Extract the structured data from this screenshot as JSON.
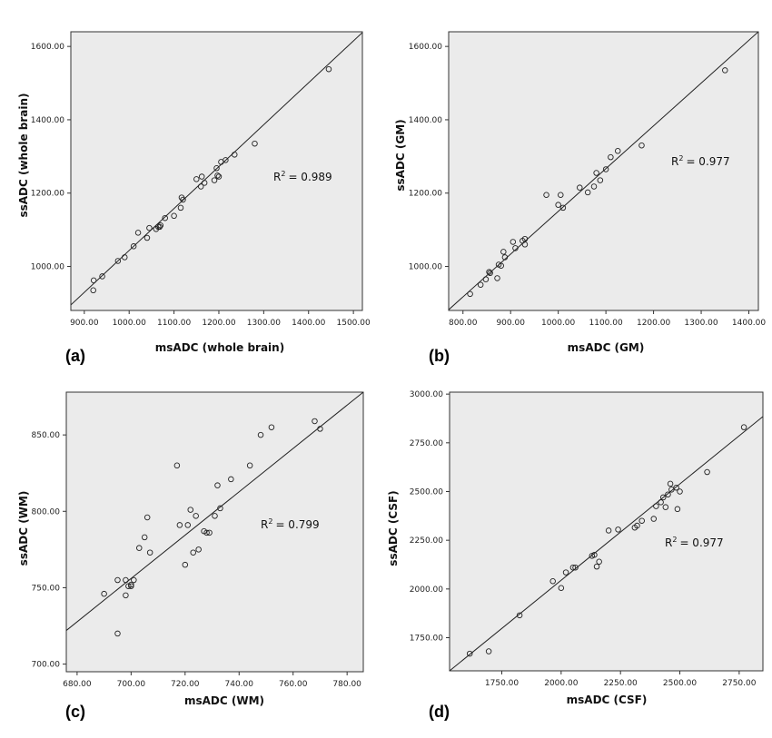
{
  "chart_data": [
    {
      "type": "scatter",
      "panel_label": "(a)",
      "xlabel": "msADC (whole brain)",
      "ylabel": "ssADC (whole brain)",
      "xlim": [
        870,
        1520
      ],
      "ylim": [
        880,
        1640
      ],
      "xticks": [
        900,
        1000,
        1100,
        1200,
        1300,
        1400,
        1500
      ],
      "yticks": [
        1000,
        1200,
        1400,
        1600
      ],
      "xtick_labels": [
        "900.00",
        "1000.00",
        "1100.00",
        "1200.00",
        "1300.00",
        "1400.00",
        "1500.00"
      ],
      "ytick_labels": [
        "1000.00",
        "1200.00",
        "1400.00",
        "1600.00"
      ],
      "r2_text": "= 0.989",
      "fit_line": {
        "x": [
          870,
          1520
        ],
        "y": [
          895,
          1638
        ]
      },
      "points": {
        "x": [
          920,
          921,
          940,
          975,
          990,
          1010,
          1020,
          1040,
          1045,
          1060,
          1065,
          1068,
          1070,
          1080,
          1100,
          1115,
          1117,
          1120,
          1150,
          1160,
          1162,
          1168,
          1190,
          1195,
          1197,
          1200,
          1205,
          1215,
          1235,
          1280,
          1445
        ],
        "y": [
          935,
          962,
          973,
          1015,
          1025,
          1055,
          1092,
          1078,
          1105,
          1102,
          1108,
          1108,
          1112,
          1132,
          1138,
          1160,
          1188,
          1182,
          1238,
          1218,
          1245,
          1228,
          1235,
          1268,
          1248,
          1245,
          1285,
          1290,
          1305,
          1335,
          1538
        ]
      }
    },
    {
      "type": "scatter",
      "panel_label": "(b)",
      "xlabel": "msADC (GM)",
      "ylabel": "ssADC (GM)",
      "xlim": [
        770,
        1420
      ],
      "ylim": [
        880,
        1640
      ],
      "xticks": [
        800,
        900,
        1000,
        1100,
        1200,
        1300,
        1400
      ],
      "yticks": [
        1000,
        1200,
        1400,
        1600
      ],
      "xtick_labels": [
        "800.00",
        "900.00",
        "1000.00",
        "1100.00",
        "1200.00",
        "1300.00",
        "1400.00"
      ],
      "ytick_labels": [
        "1000.00",
        "1200.00",
        "1400.00",
        "1600.00"
      ],
      "r2_text": "= 0.977",
      "fit_line": {
        "x": [
          770,
          1420
        ],
        "y": [
          882,
          1640
        ]
      },
      "points": {
        "x": [
          815,
          837,
          848,
          855,
          857,
          872,
          875,
          880,
          885,
          888,
          905,
          910,
          925,
          930,
          930,
          975,
          1000,
          1005,
          1010,
          1045,
          1062,
          1075,
          1080,
          1088,
          1100,
          1110,
          1125,
          1175,
          1350
        ],
        "y": [
          925,
          950,
          965,
          985,
          982,
          968,
          1005,
          1002,
          1040,
          1025,
          1067,
          1050,
          1070,
          1060,
          1075,
          1195,
          1168,
          1195,
          1160,
          1215,
          1202,
          1218,
          1255,
          1235,
          1265,
          1298,
          1315,
          1330,
          1535
        ]
      }
    },
    {
      "type": "scatter",
      "panel_label": "(c)",
      "xlabel": "msADC (WM)",
      "ylabel": "ssADC (WM)",
      "xlim": [
        676,
        786
      ],
      "ylim": [
        695,
        878
      ],
      "xticks": [
        680,
        700,
        720,
        740,
        760,
        780
      ],
      "yticks": [
        700,
        750,
        800,
        850
      ],
      "xtick_labels": [
        "680.00",
        "700.00",
        "720.00",
        "740.00",
        "760.00",
        "780.00"
      ],
      "ytick_labels": [
        "700.00",
        "750.00",
        "800.00",
        "850.00"
      ],
      "r2_text": "= 0.799",
      "fit_line": {
        "x": [
          676,
          786
        ],
        "y": [
          722,
          878
        ]
      },
      "points": {
        "x": [
          690,
          695,
          695,
          698,
          698,
          699,
          700,
          700,
          701,
          703,
          705,
          706,
          707,
          717,
          718,
          720,
          721,
          722,
          723,
          724,
          725,
          727,
          728,
          729,
          731,
          732,
          733,
          737,
          744,
          748,
          752,
          768,
          770
        ],
        "y": [
          746,
          755,
          720,
          755,
          745,
          751,
          752,
          751,
          755,
          776,
          783,
          796,
          773,
          830,
          791,
          765,
          791,
          801,
          773,
          797,
          775,
          787,
          786,
          786,
          797,
          817,
          802,
          821,
          830,
          850,
          855,
          859,
          854
        ]
      }
    },
    {
      "type": "scatter",
      "panel_label": "(d)",
      "xlabel": "msADC (CSF)",
      "ylabel": "ssADC (CSF)",
      "xlim": [
        1530,
        2850
      ],
      "ylim": [
        1580,
        3010
      ],
      "xticks": [
        1750,
        2000,
        2250,
        2500,
        2750
      ],
      "yticks": [
        1750,
        2000,
        2250,
        2500,
        2750,
        3000
      ],
      "xtick_labels": [
        "1750.00",
        "2000.00",
        "2250.00",
        "2500.00",
        "2750.00"
      ],
      "ytick_labels": [
        "1750.00",
        "2000.00",
        "2250.00",
        "2500.00",
        "2750.00",
        "3000.00"
      ],
      "r2_text": "= 0.977",
      "fit_line": {
        "x": [
          1530,
          2850
        ],
        "y": [
          1580,
          2885
        ]
      },
      "points": {
        "x": [
          1615,
          1695,
          1825,
          1965,
          2000,
          2020,
          2050,
          2060,
          2130,
          2140,
          2150,
          2160,
          2200,
          2240,
          2310,
          2320,
          2340,
          2390,
          2400,
          2420,
          2430,
          2440,
          2450,
          2460,
          2465,
          2485,
          2490,
          2500,
          2615,
          2770
        ],
        "y": [
          1668,
          1680,
          1865,
          2040,
          2005,
          2085,
          2110,
          2110,
          2170,
          2175,
          2115,
          2140,
          2300,
          2305,
          2315,
          2325,
          2350,
          2360,
          2425,
          2445,
          2470,
          2420,
          2485,
          2540,
          2510,
          2520,
          2410,
          2500,
          2600,
          2830
        ]
      }
    }
  ]
}
